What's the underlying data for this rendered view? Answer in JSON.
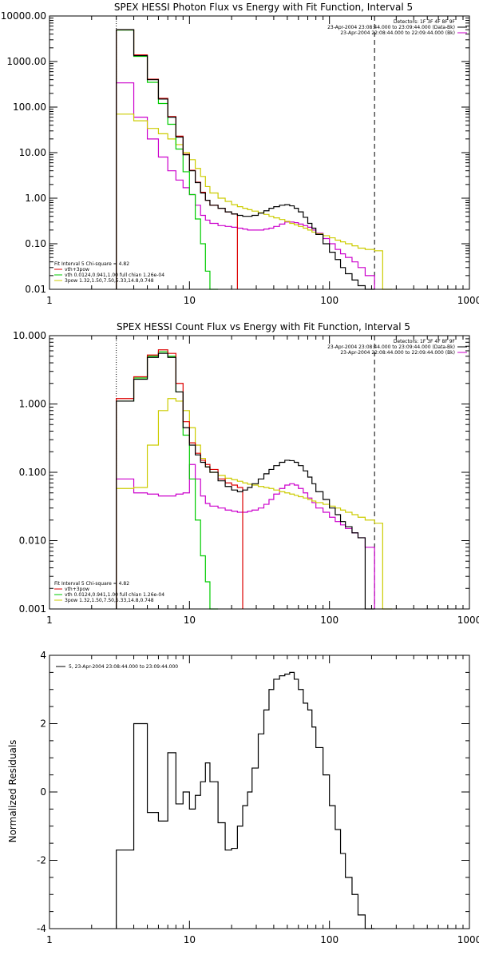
{
  "colors": {
    "total": "#000000",
    "vth_plus_3pow": "#dd0000",
    "vth": "#00cc00",
    "bpow": "#cccc00",
    "bk": "#cc00cc"
  },
  "chart_data": [
    {
      "type": "line",
      "title": "SPEX HESSI Photon Flux vs Energy with Fit Function, Interval 5",
      "xlim": [
        1,
        1000
      ],
      "ylim": [
        0.01,
        10000
      ],
      "xscale": "log",
      "yscale": "log",
      "xticklabels": [
        "1",
        "10",
        "100",
        "1000"
      ],
      "yticklabels": [
        "0.01",
        "0.10",
        "1.00",
        "10.00",
        "100.00",
        "1000.00",
        "10000.00"
      ],
      "yticks": [
        0.01,
        0.1,
        1,
        10,
        100,
        1000,
        10000
      ],
      "vlines": [
        {
          "x": 3,
          "style": "dotted"
        },
        {
          "x": 210,
          "style": "dashed"
        }
      ],
      "legend_right": [
        "Detectors: 1F 3F 4F 8F 9F",
        "23-Apr-2004 23:08:44.000 to 23:09:44.000 (Data-Bk)",
        "23-Apr-2004 22:08:44.000 to 22:09:44.000 (Bk)"
      ],
      "legend_right_colors": [
        "",
        "total",
        "bk"
      ],
      "legend_left": [
        "Fit Interval 5   Chi-square = 4.82",
        "vth+3pow",
        "vth 0.0124,0.941,1.00  full chian 1.26e-04",
        "3pow 1.32,1.50,7.50,5.33,14.8,0.748"
      ],
      "legend_left_colors": [
        "",
        "vth_plus_3pow",
        "vth",
        "bpow"
      ],
      "edges": [
        3,
        4,
        5,
        6,
        7,
        8,
        9,
        10,
        11,
        12,
        13,
        14,
        16,
        18,
        20,
        22,
        24,
        26,
        28,
        31,
        34,
        37,
        40,
        44,
        48,
        52,
        56,
        60,
        65,
        70,
        75,
        80,
        90,
        100,
        110,
        120,
        130,
        145,
        160,
        180,
        210,
        240,
        280
      ],
      "series": [
        {
          "key": "total",
          "values": [
            5000,
            1350,
            400,
            150,
            60,
            22,
            9,
            4,
            2.2,
            1.3,
            0.9,
            0.7,
            0.6,
            0.5,
            0.45,
            0.42,
            0.4,
            0.4,
            0.42,
            0.47,
            0.53,
            0.6,
            0.65,
            0.7,
            0.72,
            0.68,
            0.6,
            0.5,
            0.38,
            0.28,
            0.22,
            0.16,
            0.1,
            0.065,
            0.045,
            0.03,
            0.022,
            0.016,
            0.012,
            0.01
          ]
        },
        {
          "key": "vth_plus_3pow",
          "values": [
            5000,
            1400,
            410,
            155,
            62,
            23,
            9.2,
            4.1,
            2.25,
            1.35,
            0.9,
            0.7,
            0.6,
            0.5,
            0.45
          ]
        },
        {
          "key": "vth",
          "values": [
            4900,
            1300,
            350,
            120,
            42,
            12,
            3.8,
            1.2,
            0.35,
            0.1,
            0.025,
            0.009
          ]
        },
        {
          "key": "bpow",
          "values": [
            70,
            50,
            34,
            26,
            20,
            15,
            10,
            7,
            4.5,
            3,
            1.8,
            1.3,
            1,
            0.85,
            0.72,
            0.65,
            0.6,
            0.56,
            0.52,
            0.48,
            0.44,
            0.4,
            0.37,
            0.34,
            0.31,
            0.28,
            0.26,
            0.24,
            0.22,
            0.2,
            0.18,
            0.165,
            0.15,
            0.135,
            0.12,
            0.11,
            0.1,
            0.09,
            0.08,
            0.075,
            0.07,
            0.01
          ]
        },
        {
          "key": "bk",
          "values": [
            340,
            60,
            20,
            8,
            4,
            2.5,
            1.7,
            1.2,
            0.7,
            0.42,
            0.33,
            0.28,
            0.25,
            0.24,
            0.23,
            0.22,
            0.21,
            0.2,
            0.2,
            0.2,
            0.21,
            0.22,
            0.24,
            0.27,
            0.3,
            0.3,
            0.29,
            0.27,
            0.25,
            0.23,
            0.2,
            0.17,
            0.13,
            0.1,
            0.075,
            0.06,
            0.05,
            0.04,
            0.03,
            0.02
          ]
        }
      ]
    },
    {
      "type": "line",
      "title": "SPEX HESSI Count Flux vs Energy with Fit Function, Interval 5",
      "xlim": [
        1,
        1000
      ],
      "ylim": [
        0.001,
        10
      ],
      "xscale": "log",
      "yscale": "log",
      "xticklabels": [
        "1",
        "10",
        "100",
        "1000"
      ],
      "yticklabels": [
        "0.001",
        "0.010",
        "0.100",
        "1.000",
        "10.000"
      ],
      "yticks": [
        0.001,
        0.01,
        0.1,
        1,
        10
      ],
      "vlines": [
        {
          "x": 3,
          "style": "dotted"
        },
        {
          "x": 210,
          "style": "dashed"
        }
      ],
      "legend_right": [
        "Detectors: 1F 3F 4F 8F 9F",
        "23-Apr-2004 23:08:44.000 to 23:09:44.000 (Data-Bk)",
        "23-Apr-2004 22:08:44.000 to 22:09:44.000 (Bk)"
      ],
      "legend_right_colors": [
        "",
        "total",
        "bk"
      ],
      "legend_left": [
        "Fit Interval 5   Chi-square = 4.82",
        "vth+3pow",
        "vth 0.0124,0.941,1.00  full chian 1.26e-04",
        "3pow 1.32,1.50,7.50,5.33,14.8,0.748"
      ],
      "legend_left_colors": [
        "",
        "vth_plus_3pow",
        "vth",
        "bpow"
      ],
      "edges": [
        3,
        4,
        5,
        6,
        7,
        8,
        9,
        10,
        11,
        12,
        13,
        14,
        16,
        18,
        20,
        22,
        24,
        26,
        28,
        31,
        34,
        37,
        40,
        44,
        48,
        52,
        56,
        60,
        65,
        70,
        75,
        80,
        90,
        100,
        110,
        120,
        130,
        145,
        160,
        180,
        210,
        240,
        280
      ],
      "series": [
        {
          "key": "total",
          "values": [
            1.1,
            2.3,
            4.8,
            5.5,
            4.8,
            1.5,
            0.45,
            0.25,
            0.18,
            0.14,
            0.12,
            0.1,
            0.075,
            0.062,
            0.055,
            0.052,
            0.055,
            0.06,
            0.068,
            0.08,
            0.095,
            0.11,
            0.125,
            0.14,
            0.15,
            0.148,
            0.14,
            0.125,
            0.105,
            0.085,
            0.068,
            0.052,
            0.04,
            0.03,
            0.024,
            0.019,
            0.016,
            0.013,
            0.011,
            0.001
          ]
        },
        {
          "key": "vth_plus_3pow",
          "values": [
            1.2,
            2.5,
            5.2,
            6.2,
            5.5,
            2,
            0.55,
            0.27,
            0.19,
            0.15,
            0.13,
            0.11,
            0.08,
            0.07,
            0.065,
            0.06
          ]
        },
        {
          "key": "vth",
          "values": [
            1.1,
            2.4,
            5,
            5.8,
            5,
            1.5,
            0.35,
            0.08,
            0.02,
            0.006,
            0.0025,
            0.001
          ]
        },
        {
          "key": "bpow",
          "values": [
            0.058,
            0.06,
            0.25,
            0.8,
            1.2,
            1.1,
            0.8,
            0.45,
            0.25,
            0.16,
            0.12,
            0.1,
            0.09,
            0.082,
            0.078,
            0.074,
            0.07,
            0.067,
            0.065,
            0.062,
            0.06,
            0.058,
            0.055,
            0.052,
            0.05,
            0.048,
            0.046,
            0.044,
            0.042,
            0.04,
            0.038,
            0.036,
            0.034,
            0.032,
            0.03,
            0.028,
            0.026,
            0.024,
            0.022,
            0.02,
            0.018,
            0.001
          ]
        },
        {
          "key": "bk",
          "values": [
            0.08,
            0.05,
            0.048,
            0.045,
            0.045,
            0.048,
            0.05,
            0.13,
            0.08,
            0.045,
            0.035,
            0.032,
            0.03,
            0.028,
            0.027,
            0.026,
            0.026,
            0.027,
            0.028,
            0.03,
            0.034,
            0.04,
            0.048,
            0.058,
            0.065,
            0.068,
            0.065,
            0.058,
            0.05,
            0.042,
            0.036,
            0.03,
            0.026,
            0.022,
            0.019,
            0.017,
            0.015,
            0.013,
            0.011,
            0.008
          ]
        }
      ]
    },
    {
      "type": "line",
      "title": "",
      "ylabel": "Normalized Residuals",
      "xlim": [
        1,
        1000
      ],
      "ylim": [
        -4,
        4
      ],
      "xscale": "log",
      "yscale": "linear",
      "xticklabels": [
        "1",
        "10",
        "100",
        "1000"
      ],
      "yticklabels": [
        "-4",
        "-2",
        "0",
        "2",
        "4"
      ],
      "yticks": [
        -4,
        -2,
        0,
        2,
        4
      ],
      "legend": "5, 23-Apr-2004 23:08:44.000 to 23:09:44.000",
      "edges": [
        3,
        4,
        5,
        6,
        7,
        8,
        9,
        10,
        11,
        12,
        13,
        14,
        16,
        18,
        20,
        22,
        24,
        26,
        28,
        31,
        34,
        37,
        40,
        44,
        48,
        52,
        56,
        60,
        65,
        70,
        75,
        80,
        90,
        100,
        110,
        120,
        130,
        145,
        160,
        180,
        210
      ],
      "series": [
        {
          "key": "total",
          "values": [
            -1.7,
            2.0,
            -0.6,
            -0.85,
            1.15,
            -0.35,
            0.0,
            -0.5,
            -0.1,
            0.3,
            0.85,
            0.3,
            -0.9,
            -1.7,
            -1.65,
            -1.0,
            -0.4,
            0.0,
            0.7,
            1.7,
            2.4,
            3.0,
            3.3,
            3.4,
            3.45,
            3.5,
            3.3,
            3.0,
            2.6,
            2.4,
            1.9,
            1.3,
            0.5,
            -0.4,
            -1.1,
            -1.8,
            -2.5,
            -3.0,
            -3.6,
            -4.0
          ]
        }
      ]
    }
  ]
}
